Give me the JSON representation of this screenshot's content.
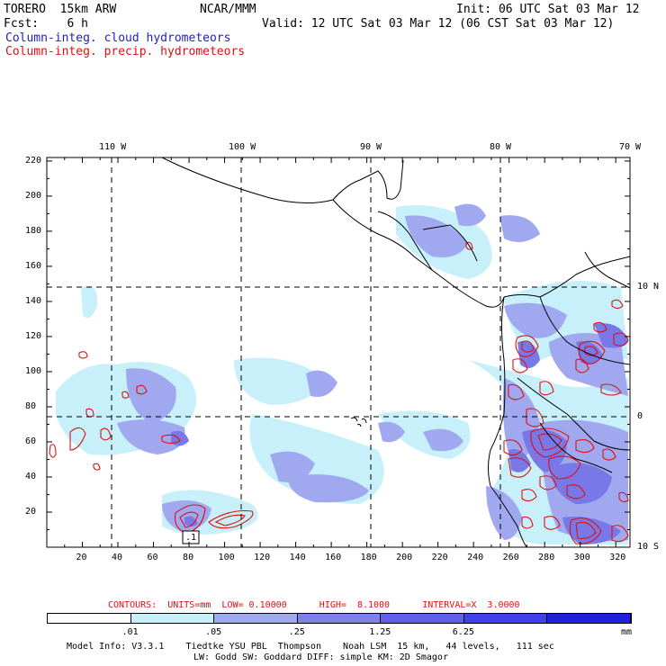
{
  "header": {
    "model": "TORERO  15km ARW",
    "org": "NCAR/MMM",
    "init": "Init: 06 UTC Sat 03 Mar 12",
    "fcst": "Fcst:    6 h",
    "valid": "Valid: 12 UTC Sat 03 Mar 12 (06 CST Sat 03 Mar 12)",
    "field1": "Column-integ. cloud hydrometeors",
    "field2": "Column-integ. precip. hydrometeors"
  },
  "map": {
    "lon_labels": [
      "110 W",
      "100 W",
      "90 W",
      "80 W",
      "70 W"
    ],
    "lat_labels": [
      "10 N",
      "0",
      "10 S"
    ],
    "x_ticks": [
      "20",
      "40",
      "60",
      "80",
      "100",
      "120",
      "140",
      "160",
      "180",
      "200",
      "220",
      "240",
      "260",
      "280",
      "300",
      "320"
    ],
    "y_ticks": [
      "20",
      "40",
      "60",
      "80",
      "100",
      "120",
      "140",
      "160",
      "180",
      "200",
      "220"
    ],
    "box_label": ".1",
    "colors": {
      "cloud_light": "#c8f0fa",
      "cloud_mid": "#a0a8f0",
      "cloud_dark": "#7878e8",
      "precip_contour": "#e01010",
      "coast": "#000000"
    }
  },
  "contours_note": {
    "label": "CONTOURS:  UNITS=mm  LOW= 0.10000      HIGH=  8.1000      INTERVAL=X  3.0000"
  },
  "colorbar": {
    "labels": [
      ".01",
      ".05",
      ".25",
      "1.25",
      "6.25"
    ],
    "unit": "mm",
    "colors": [
      "#ffffff",
      "#c8f0fa",
      "#a0a8f0",
      "#8080e8",
      "#6060e8",
      "#4040e8",
      "#2020e0"
    ]
  },
  "footer": {
    "line1": "Model Info: V3.3.1    Tiedtke YSU PBL  Thompson    Noah LSM  15 km,   44 levels,   111 sec",
    "line2": "LW: Godd SW: Goddard DIFF: simple KM: 2D Smagor"
  }
}
